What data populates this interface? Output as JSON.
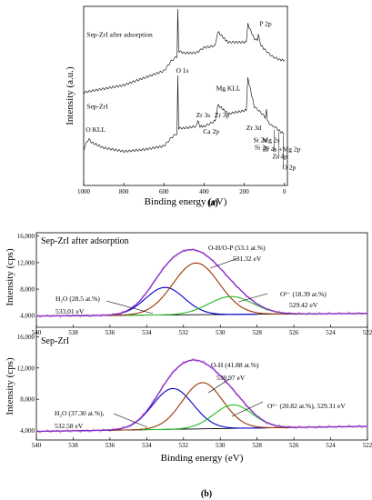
{
  "chart_data": [
    {
      "type": "line",
      "panel_label": "(a)",
      "xlabel": "Binding energy (eV)",
      "ylabel": "Intensity (a.u.)",
      "x_ticks": [
        1000,
        800,
        600,
        400,
        200,
        0
      ],
      "xlim": [
        1000,
        -15
      ],
      "series": [
        {
          "name": "Sep-ZrI after adsorption",
          "x": [
            1000,
            900,
            800,
            700,
            600,
            560,
            535,
            531,
            527,
            500,
            440,
            400,
            345,
            332,
            300,
            280,
            190,
            182,
            150,
            135,
            130,
            120,
            100,
            60,
            20,
            0
          ],
          "y": [
            52,
            54,
            56,
            60,
            64,
            70,
            72,
            99,
            75,
            74,
            74,
            77,
            78,
            86,
            82,
            80,
            80,
            90,
            82,
            81,
            84,
            79,
            76,
            72,
            70,
            70
          ]
        },
        {
          "name": "Sep-ZrI",
          "x": [
            1000,
            990,
            975,
            960,
            900,
            800,
            700,
            600,
            560,
            535,
            531,
            527,
            500,
            440,
            432,
            420,
            400,
            345,
            332,
            300,
            280,
            190,
            182,
            150,
            110,
            95,
            89,
            85,
            60,
            50,
            20,
            0
          ],
          "y": [
            20,
            23,
            26,
            24,
            21,
            19,
            20,
            22,
            27,
            29,
            62,
            32,
            32,
            33,
            36,
            33,
            33,
            36,
            45,
            42,
            40,
            42,
            60,
            44,
            40,
            38,
            42,
            36,
            33,
            33,
            30,
            29
          ]
        }
      ],
      "annotations": [
        {
          "text": "O 1s",
          "x": 531
        },
        {
          "text": "P 2p",
          "x": 133
        },
        {
          "text": "O KLL",
          "x": 975
        },
        {
          "text": "Zr 3s",
          "x": 432
        },
        {
          "text": "Ca 2p",
          "x": 347
        },
        {
          "text": "Zr 3p",
          "x": 332
        },
        {
          "text": "Mg KLL",
          "x": 305
        },
        {
          "text": "Zr 3d",
          "x": 182
        },
        {
          "text": "Si 2s",
          "x": 153
        },
        {
          "text": "Si 2p",
          "x": 102
        },
        {
          "text": "Mg 2s",
          "x": 89
        },
        {
          "text": "Zr 4s +Mg 2p",
          "x": 51
        },
        {
          "text": "Zr 4p",
          "x": 29
        },
        {
          "text": "O 2p",
          "x": 5
        }
      ]
    },
    {
      "type": "line",
      "panel_label": "(b)",
      "xlabel": "Binding energy (eV)",
      "ylabel": "Intensity (cps)",
      "x_ticks": [
        540,
        538,
        536,
        534,
        532,
        530,
        528,
        526,
        524,
        522
      ],
      "y_ticks": [
        "4,000",
        "8,000",
        "12,000",
        "16,000"
      ],
      "xlim": [
        540,
        522
      ],
      "ylim": [
        2800,
        16500
      ],
      "subplots": [
        {
          "title": "Sep-ZrI after adsorption",
          "baseline": {
            "start": 3950,
            "end": 4350
          },
          "components": [
            {
              "label": "H2O",
              "text": "H₂O (28.5 at.%)",
              "energy": "533.01 eV",
              "center": 533.01,
              "height": 4150,
              "sigma": 1.05,
              "color": "#0000cc"
            },
            {
              "label": "O-H/O-P",
              "text": "O-H/O-P (53.1 at.%)",
              "energy": "531.32 eV",
              "center": 531.32,
              "height": 7800,
              "sigma": 1.25,
              "color": "#993300"
            },
            {
              "label": "O2-",
              "text": "O²⁻ (18.39 at.%)",
              "energy": "529.42 eV",
              "center": 529.42,
              "height": 2700,
              "sigma": 1.2,
              "color": "#22bb22"
            }
          ]
        },
        {
          "title": "Sep-ZrI",
          "baseline": {
            "start": 3900,
            "end": 4550
          },
          "components": [
            {
              "label": "H2O",
              "text": "H₂O (37.30 at.%),",
              "energy": "532.58 eV",
              "center": 532.58,
              "height": 5200,
              "sigma": 1.1,
              "color": "#0000cc"
            },
            {
              "label": "O-H",
              "text": "O-H (41.88 at.%)",
              "energy": "530.97 eV",
              "center": 530.97,
              "height": 5900,
              "sigma": 1.1,
              "color": "#993300"
            },
            {
              "label": "O2-",
              "text": "O²⁻ (20.82 at.%), 529.31 eV",
              "energy": "",
              "center": 529.31,
              "height": 3000,
              "sigma": 1.05,
              "color": "#22bb22"
            }
          ]
        }
      ],
      "envelope_color": "#7b2fd1",
      "baseline_color": "#000000"
    }
  ]
}
